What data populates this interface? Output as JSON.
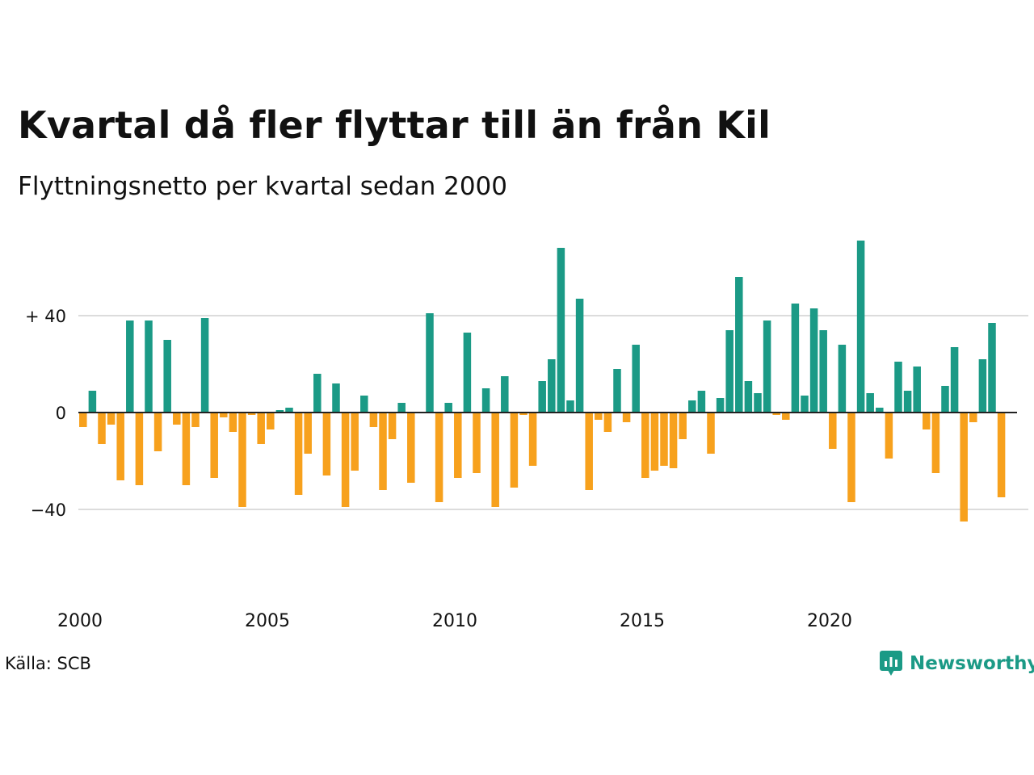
{
  "title": "Kvartal då fler flyttar till än från Kil",
  "subtitle": "Flyttningsnetto per kvartal sedan 2000",
  "source": "Källa: SCB",
  "brand": "Newsworthy",
  "colors": {
    "positive": "#1b9a86",
    "negative": "#f7a11d",
    "grid": "#dcdcdc",
    "axis": "#222222",
    "brand": "#1b9a86"
  },
  "chart_data": {
    "type": "bar",
    "title": "Kvartal då fler flyttar till än från Kil",
    "subtitle": "Flyttningsnetto per kvartal sedan 2000",
    "xlabel": "",
    "ylabel": "",
    "ylim": [
      -60,
      75
    ],
    "y_ticks": [
      {
        "value": 40,
        "label": "+ 40"
      },
      {
        "value": 0,
        "label": "0"
      },
      {
        "value": -40,
        "label": "−40"
      }
    ],
    "x_ticks": [
      {
        "year": 2000,
        "label": "2000"
      },
      {
        "year": 2005,
        "label": "2005"
      },
      {
        "year": 2010,
        "label": "2010"
      },
      {
        "year": 2015,
        "label": "2015"
      },
      {
        "year": 2020,
        "label": "2020"
      }
    ],
    "grid": true,
    "legend": "none",
    "categories": [
      "2000 K1",
      "2000 K2",
      "2000 K3",
      "2000 K4",
      "2001 K1",
      "2001 K2",
      "2001 K3",
      "2001 K4",
      "2002 K1",
      "2002 K2",
      "2002 K3",
      "2002 K4",
      "2003 K1",
      "2003 K2",
      "2003 K3",
      "2003 K4",
      "2004 K1",
      "2004 K2",
      "2004 K3",
      "2004 K4",
      "2005 K1",
      "2005 K2",
      "2005 K3",
      "2005 K4",
      "2006 K1",
      "2006 K2",
      "2006 K3",
      "2006 K4",
      "2007 K1",
      "2007 K2",
      "2007 K3",
      "2007 K4",
      "2008 K1",
      "2008 K2",
      "2008 K3",
      "2008 K4",
      "2009 K1",
      "2009 K2",
      "2009 K3",
      "2009 K4",
      "2010 K1",
      "2010 K2",
      "2010 K3",
      "2010 K4",
      "2011 K1",
      "2011 K2",
      "2011 K3",
      "2011 K4",
      "2012 K1",
      "2012 K2",
      "2012 K3",
      "2012 K4",
      "2013 K1",
      "2013 K2",
      "2013 K3",
      "2013 K4",
      "2014 K1",
      "2014 K2",
      "2014 K3",
      "2014 K4",
      "2015 K1",
      "2015 K2",
      "2015 K3",
      "2015 K4",
      "2016 K1",
      "2016 K2",
      "2016 K3",
      "2016 K4",
      "2017 K1",
      "2017 K2",
      "2017 K3",
      "2017 K4",
      "2018 K1",
      "2018 K2",
      "2018 K3",
      "2018 K4",
      "2019 K1",
      "2019 K2",
      "2019 K3",
      "2019 K4",
      "2020 K1",
      "2020 K2",
      "2020 K3",
      "2020 K4",
      "2021 K1",
      "2021 K2",
      "2021 K3",
      "2021 K4",
      "2022 K1",
      "2022 K2",
      "2022 K3",
      "2022 K4",
      "2023 K1",
      "2023 K2",
      "2023 K3",
      "2023 K4",
      "2024 K1",
      "2024 K2",
      "2024 K3",
      "2024 K4"
    ],
    "values": [
      -6,
      9,
      -13,
      -5,
      -28,
      38,
      -30,
      38,
      -16,
      30,
      -5,
      -30,
      -6,
      39,
      -27,
      -2,
      -8,
      -39,
      -1,
      -13,
      -7,
      1,
      2,
      -34,
      -17,
      16,
      -26,
      12,
      -39,
      -24,
      7,
      -6,
      -32,
      -11,
      4,
      -29,
      0,
      41,
      -37,
      4,
      -27,
      33,
      -25,
      10,
      -39,
      15,
      -31,
      -1,
      -22,
      13,
      22,
      68,
      5,
      47,
      -32,
      -3,
      -8,
      18,
      -4,
      28,
      -27,
      -24,
      -22,
      -23,
      -11,
      5,
      9,
      -17,
      6,
      34,
      56,
      13,
      8,
      38,
      -1,
      -3,
      45,
      7,
      43,
      34,
      -15,
      28,
      -37,
      71,
      8,
      2,
      -19,
      21,
      9,
      19,
      -7,
      -25,
      11,
      27,
      -45,
      -4,
      22,
      37,
      -35,
      0
    ]
  }
}
